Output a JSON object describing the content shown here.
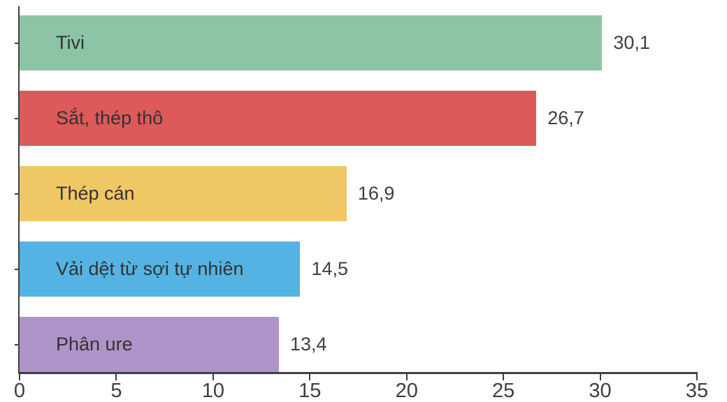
{
  "chart_data": {
    "type": "bar",
    "orientation": "horizontal",
    "title": "",
    "xlabel": "",
    "ylabel": "",
    "categories": [
      "Tivi",
      "Sắt, thép thô",
      "Thép cán",
      "Vải dệt từ sợi tự nhiên",
      "Phân ure"
    ],
    "values": [
      30.1,
      26.7,
      16.9,
      14.5,
      13.4
    ],
    "value_labels": [
      "30,1",
      "26,7",
      "16,9",
      "14,5",
      "13,4"
    ],
    "bar_colors": [
      "#8DC4A5",
      "#DC5A5A",
      "#F0C765",
      "#55B3E3",
      "#AE94C8"
    ],
    "xlim": [
      0,
      35
    ],
    "x_ticks": [
      0,
      5,
      10,
      15,
      20,
      25,
      30,
      35
    ],
    "x_tick_labels": [
      "0",
      "5",
      "10",
      "15",
      "20",
      "25",
      "30",
      "35"
    ],
    "grid": false,
    "legend": false,
    "axis_color": "#404040",
    "text_color": "#3f3f3f",
    "background_color": "#ffffff"
  }
}
